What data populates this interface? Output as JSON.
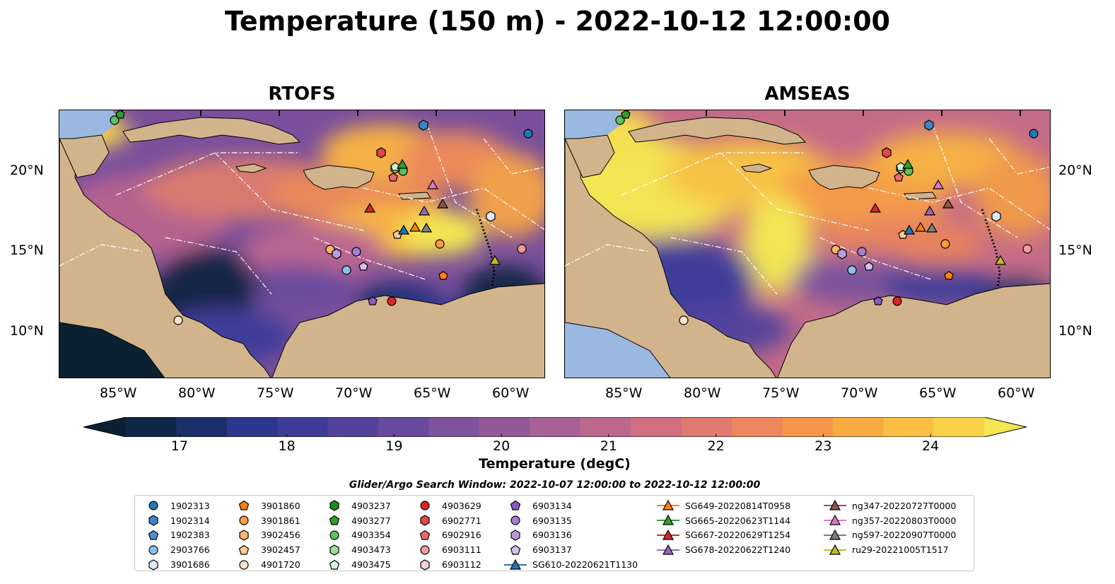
{
  "title": "Temperature (150 m) - 2022-10-12 12:00:00",
  "panels": [
    {
      "title": "RTOFS"
    },
    {
      "title": "AMSEAS"
    }
  ],
  "axes": {
    "x_ticks": [
      "85°W",
      "80°W",
      "75°W",
      "70°W",
      "65°W",
      "60°W"
    ],
    "y_ticks": [
      "20°N",
      "15°N",
      "10°N"
    ]
  },
  "colorbar": {
    "label": "Temperature (degC)",
    "ticks": [
      "17",
      "18",
      "19",
      "20",
      "21",
      "22",
      "23",
      "24"
    ],
    "range": [
      16.5,
      24.5
    ],
    "extend": "both",
    "colors": [
      "#0b2132",
      "#122747",
      "#1d2f6b",
      "#2d358c",
      "#3f3c99",
      "#52429c",
      "#674a9d",
      "#7c539c",
      "#925a99",
      "#a76194",
      "#bc688c",
      "#cf6f80",
      "#e07970",
      "#ec865c",
      "#f5964a",
      "#f9aa41",
      "#fbbd42",
      "#f9d24a",
      "#f2e652"
    ]
  },
  "search_window": "Glider/Argo Search Window: 2022-10-07 12:00:00 to 2022-10-12 12:00:00",
  "legend": {
    "columns": [
      [
        {
          "label": "1902313",
          "shape": "circle",
          "color": "#1f77b4"
        },
        {
          "label": "1902314",
          "shape": "hexagon",
          "color": "#3d85c6"
        },
        {
          "label": "1902383",
          "shape": "pentagon",
          "color": "#4a8fd0"
        },
        {
          "label": "2903766",
          "shape": "circle",
          "color": "#8ec1ea"
        },
        {
          "label": "3901686",
          "shape": "hexagon",
          "color": "#dbeaf8"
        }
      ],
      [
        {
          "label": "3901860",
          "shape": "pentagon",
          "color": "#ff7f0e"
        },
        {
          "label": "3901861",
          "shape": "circle",
          "color": "#ff9a3d"
        },
        {
          "label": "3902456",
          "shape": "hexagon",
          "color": "#ffb36b"
        },
        {
          "label": "3902457",
          "shape": "pentagon",
          "color": "#ffc994"
        },
        {
          "label": "4901720",
          "shape": "circle",
          "color": "#ffe3cc"
        }
      ],
      [
        {
          "label": "4903237",
          "shape": "hexagon",
          "color": "#1a8f1a"
        },
        {
          "label": "4903277",
          "shape": "pentagon",
          "color": "#2ca02c"
        },
        {
          "label": "4903354",
          "shape": "circle",
          "color": "#5dc25d"
        },
        {
          "label": "4903473",
          "shape": "hexagon",
          "color": "#98de98"
        },
        {
          "label": "4903475",
          "shape": "pentagon",
          "color": "#d4f7d4"
        }
      ],
      [
        {
          "label": "4903629",
          "shape": "circle",
          "color": "#d62728"
        },
        {
          "label": "6902771",
          "shape": "hexagon",
          "color": "#e0474a"
        },
        {
          "label": "6902916",
          "shape": "pentagon",
          "color": "#ea6a6c"
        },
        {
          "label": "6903111",
          "shape": "circle",
          "color": "#f29a9b"
        },
        {
          "label": "6903112",
          "shape": "hexagon",
          "color": "#fbcfd0"
        }
      ],
      [
        {
          "label": "6903134",
          "shape": "pentagon",
          "color": "#8a5cc0"
        },
        {
          "label": "6903135",
          "shape": "circle",
          "color": "#a27fd0"
        },
        {
          "label": "6903136",
          "shape": "hexagon",
          "color": "#b99be0"
        },
        {
          "label": "6903137",
          "shape": "pentagon",
          "color": "#d3bff0"
        },
        {
          "label": "SG610-20220621T1130",
          "shape": "triangle-line",
          "color": "#1f77b4"
        }
      ],
      [
        {
          "label": "SG649-20220814T0958",
          "shape": "triangle-line",
          "color": "#ff7f0e"
        },
        {
          "label": "SG665-20220623T1144",
          "shape": "triangle-line",
          "color": "#2ca02c"
        },
        {
          "label": "SG667-20220629T1254",
          "shape": "triangle-line",
          "color": "#d62728"
        },
        {
          "label": "SG678-20220622T1240",
          "shape": "triangle-line",
          "color": "#9467bd"
        }
      ],
      [
        {
          "label": "ng347-20220727T0000",
          "shape": "triangle-line",
          "color": "#8c564b"
        },
        {
          "label": "ng357-20220803T0000",
          "shape": "triangle-line",
          "color": "#e377c2"
        },
        {
          "label": "ng597-20220907T0000",
          "shape": "triangle-line",
          "color": "#7f7f7f"
        },
        {
          "label": "ru29-20221005T1517",
          "shape": "triangle-line",
          "color": "#bcbd22"
        }
      ]
    ]
  }
}
